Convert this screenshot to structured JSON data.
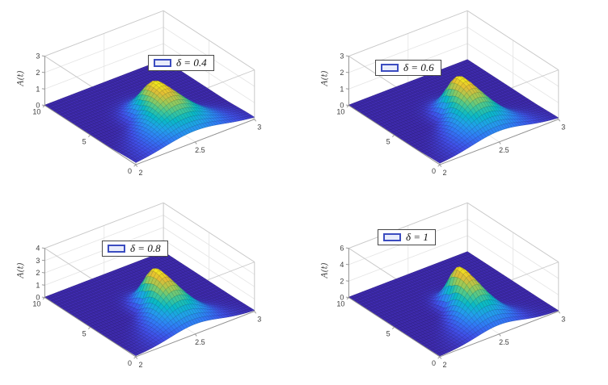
{
  "figure": {
    "background": "#ffffff",
    "description": "2x2 grid of 3D surface plots of A(t) for four values of delta"
  },
  "accent_colors": {
    "surface_low": "#3e26a8",
    "surface_high": "#f9fb15",
    "legend_swatch_border": "#3b4cc0",
    "legend_swatch_fill": "#e8ecfb",
    "grid_line": "#e4e4e4",
    "box_line": "#c8c8c8",
    "axis_line": "#8f8f8f",
    "tick_label": "#3d3d3d"
  },
  "chart_data": [
    {
      "type": "surface",
      "legend_label": "δ = 0.4",
      "zlabel": "A(t)",
      "xlim": [
        2,
        3
      ],
      "ylim": [
        0,
        10
      ],
      "zlim": [
        0,
        3
      ],
      "xticks": [
        2,
        2.5,
        3
      ],
      "yticks": [
        0,
        5,
        10
      ],
      "zticks": [
        0,
        1,
        2,
        3
      ],
      "colormap": "parula",
      "view": {
        "azimuth": -37.5,
        "elevation": 30
      },
      "surface": {
        "peak_amplitude": 2.1,
        "peak_x": 2.5,
        "peak_y": 4.3,
        "sigma0": 0.105,
        "spread": 0.035,
        "front_var": 16,
        "back_var": 2.6,
        "base": 0.012,
        "nx": 46,
        "ny": 30
      }
    },
    {
      "type": "surface",
      "legend_label": "δ = 0.6",
      "zlabel": "A(t)",
      "xlim": [
        2,
        3
      ],
      "ylim": [
        0,
        10
      ],
      "zlim": [
        0,
        3
      ],
      "xticks": [
        2,
        2.5,
        3
      ],
      "yticks": [
        0,
        5,
        10
      ],
      "zticks": [
        0,
        1,
        2,
        3
      ],
      "colormap": "parula",
      "view": {
        "azimuth": -37.5,
        "elevation": 30
      },
      "surface": {
        "peak_amplitude": 2.4,
        "peak_x": 2.5,
        "peak_y": 4.3,
        "sigma0": 0.085,
        "spread": 0.033,
        "front_var": 14,
        "back_var": 2.4,
        "base": 0.012,
        "nx": 46,
        "ny": 30
      }
    },
    {
      "type": "surface",
      "legend_label": "δ = 0.8",
      "zlabel": "A(t)",
      "xlim": [
        2,
        3
      ],
      "ylim": [
        0,
        10
      ],
      "zlim": [
        0,
        4
      ],
      "xticks": [
        2,
        2.5,
        3
      ],
      "yticks": [
        0,
        5,
        10
      ],
      "zticks": [
        0,
        1,
        2,
        3,
        4
      ],
      "colormap": "parula",
      "view": {
        "azimuth": -37.5,
        "elevation": 30
      },
      "surface": {
        "peak_amplitude": 3.2,
        "peak_x": 2.5,
        "peak_y": 4.3,
        "sigma0": 0.075,
        "spread": 0.031,
        "front_var": 13,
        "back_var": 2.2,
        "base": 0.012,
        "nx": 46,
        "ny": 30
      }
    },
    {
      "type": "surface",
      "legend_label": "δ = 1",
      "zlabel": "A(t)",
      "xlim": [
        2,
        3
      ],
      "ylim": [
        0,
        10
      ],
      "zlim": [
        0,
        6
      ],
      "xticks": [
        2,
        2.5,
        3
      ],
      "yticks": [
        0,
        5,
        10
      ],
      "zticks": [
        0,
        2,
        4,
        6
      ],
      "colormap": "parula",
      "view": {
        "azimuth": -37.5,
        "elevation": 30
      },
      "surface": {
        "peak_amplitude": 5.0,
        "peak_x": 2.5,
        "peak_y": 4.3,
        "sigma0": 0.065,
        "spread": 0.029,
        "front_var": 12,
        "back_var": 2.0,
        "base": 0.012,
        "nx": 46,
        "ny": 30
      }
    }
  ]
}
